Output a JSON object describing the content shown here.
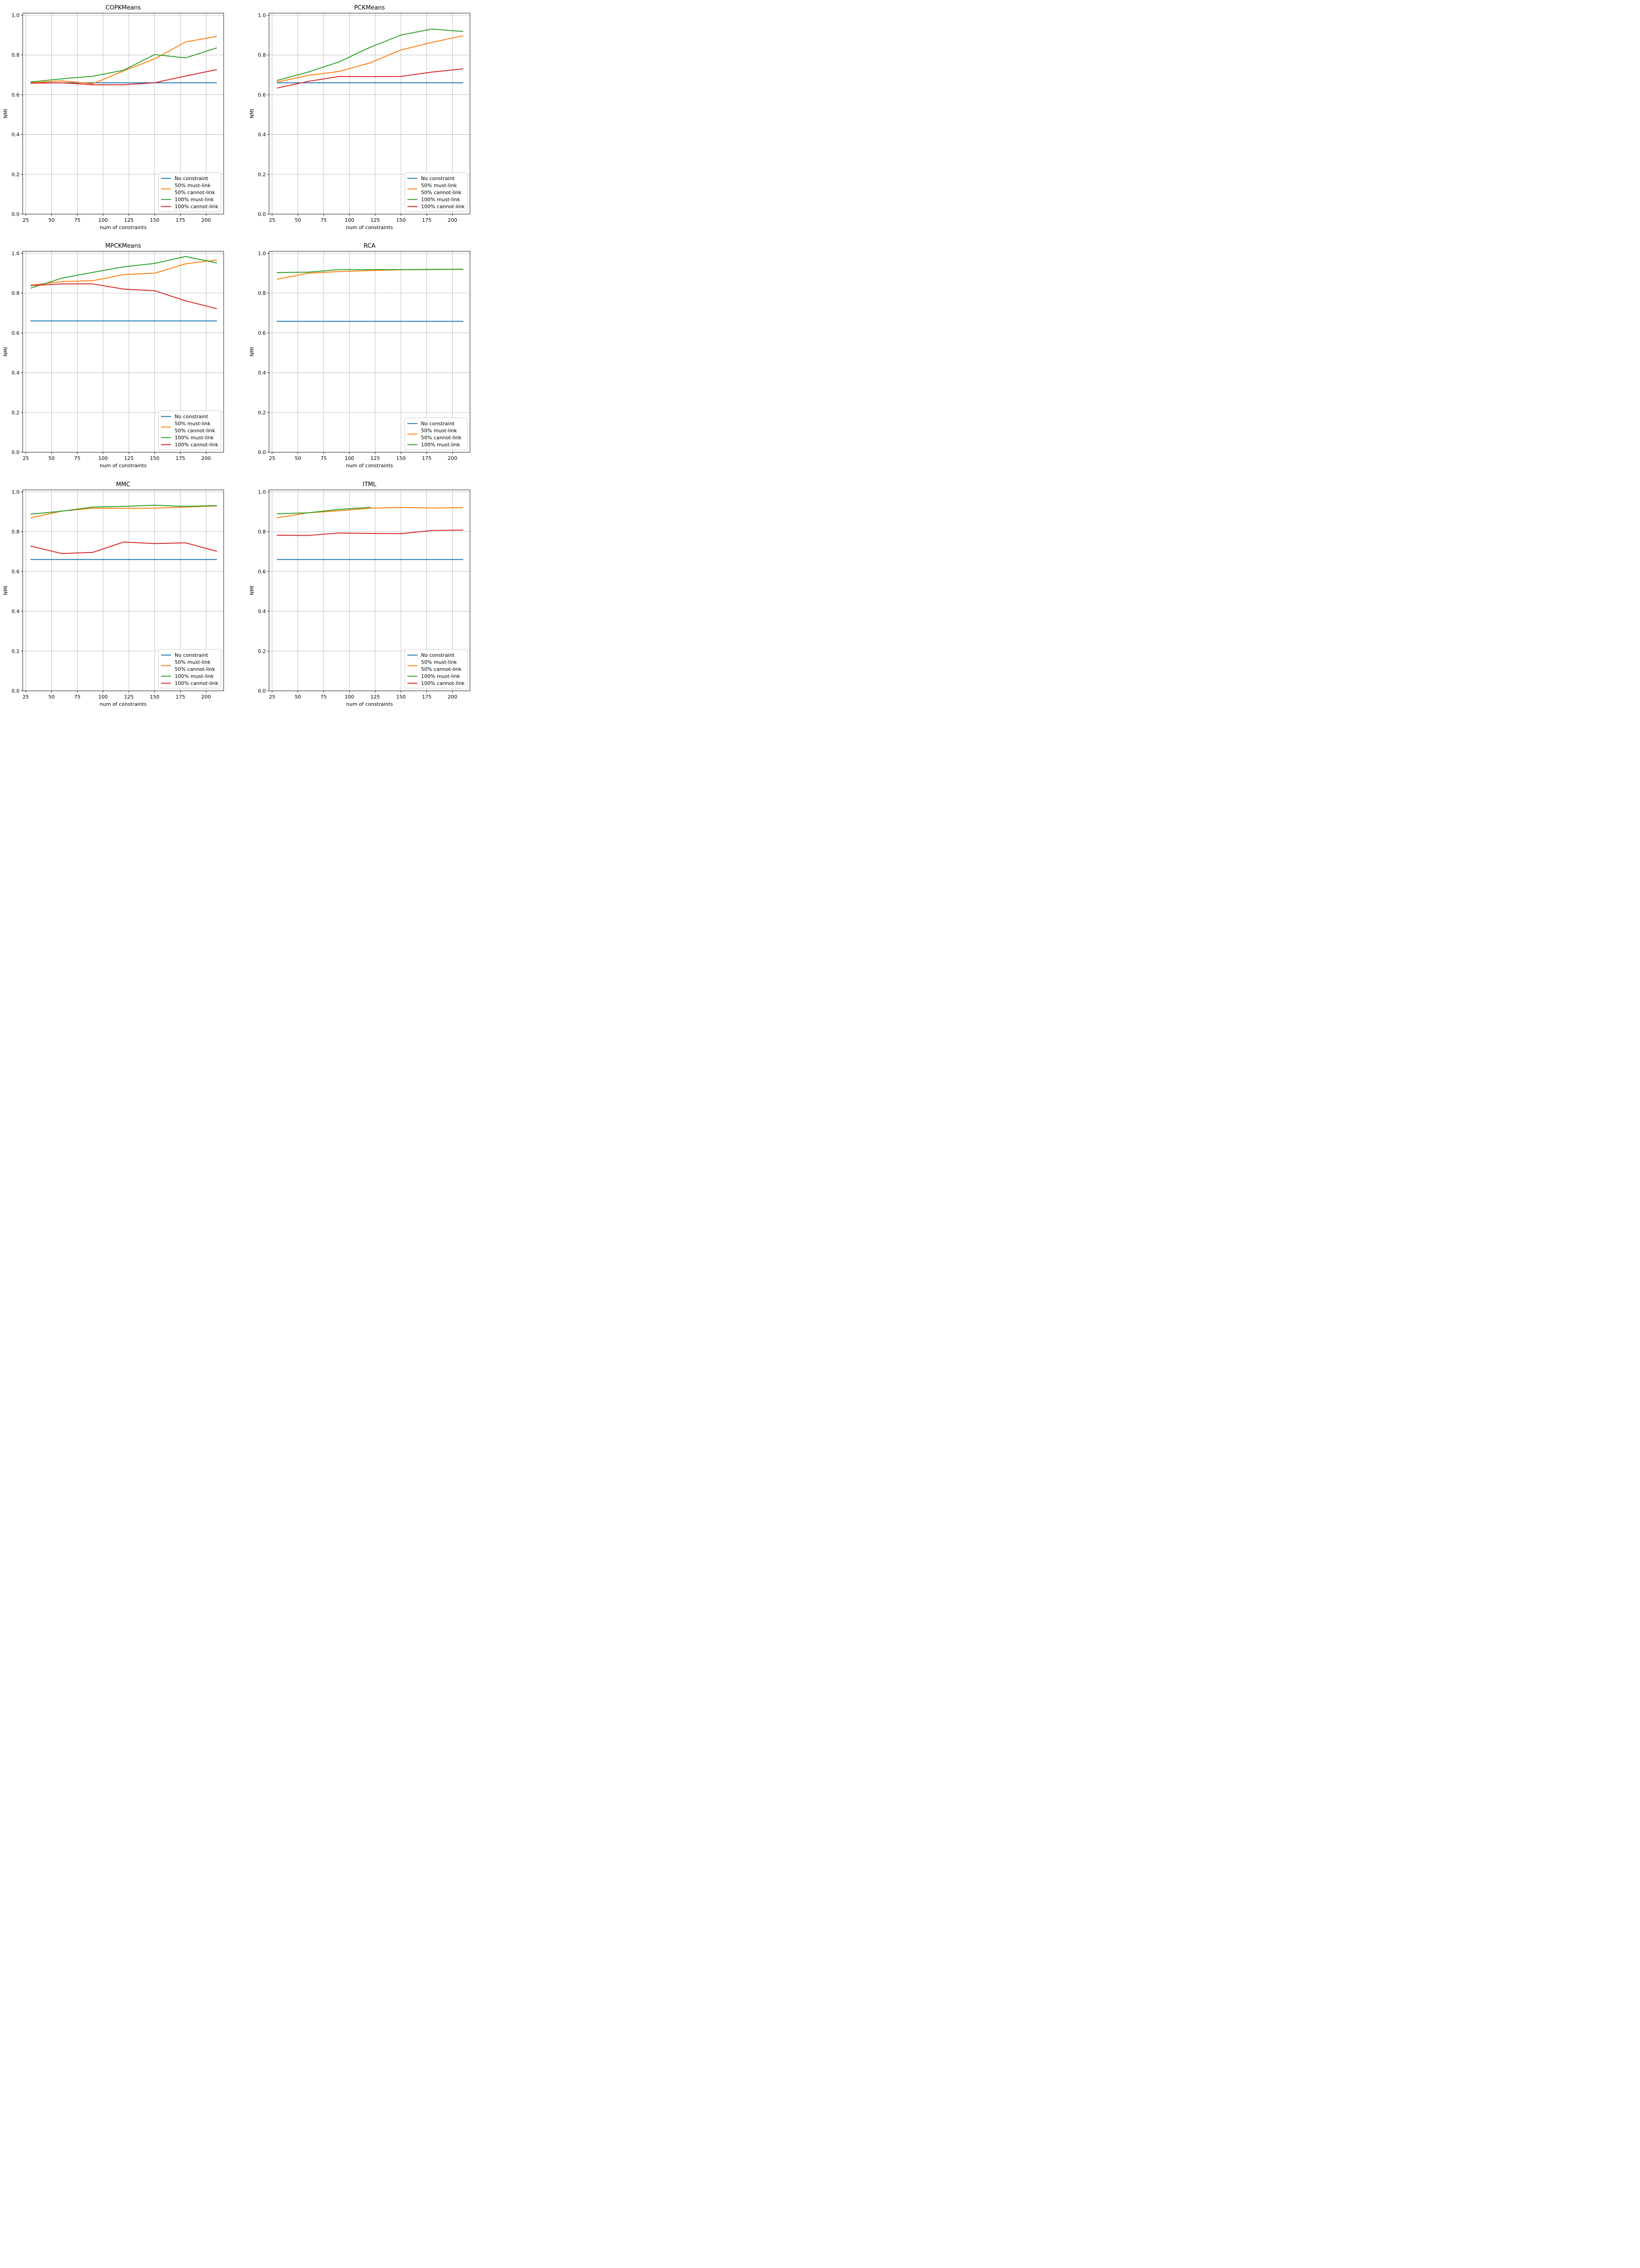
{
  "chart_data": [
    {
      "type": "line",
      "title": "COPKMeans",
      "xlabel": "num of constraints",
      "ylabel": "NMI",
      "x": [
        30,
        60,
        90,
        120,
        150,
        180,
        210
      ],
      "xlim": [
        22,
        217
      ],
      "ylim": [
        0,
        1.01
      ],
      "xticks": [
        25,
        50,
        75,
        100,
        125,
        150,
        175,
        200
      ],
      "yticks": [
        0.0,
        0.2,
        0.4,
        0.6,
        0.8,
        1.0
      ],
      "grid": true,
      "legend": "lower-right",
      "series": [
        {
          "name": "No constraint",
          "color": "#1f77b4",
          "values": [
            0.66,
            0.66,
            0.66,
            0.66,
            0.66,
            0.66,
            0.66
          ]
        },
        {
          "name": "50% must-link\n50% cannot-link",
          "color": "#ff7f0e",
          "values": [
            0.66,
            0.67,
            0.655,
            0.72,
            0.78,
            0.865,
            0.893
          ]
        },
        {
          "name": "100% must-link",
          "color": "#2ca02c",
          "values": [
            0.664,
            0.68,
            0.693,
            0.723,
            0.802,
            0.785,
            0.835
          ]
        },
        {
          "name": "100% cannot-link",
          "color": "#d62728",
          "values": [
            0.658,
            0.66,
            0.65,
            0.65,
            0.66,
            0.694,
            0.726
          ]
        }
      ]
    },
    {
      "type": "line",
      "title": "PCKMeans",
      "xlabel": "num of constraints",
      "ylabel": "NMI",
      "x": [
        30,
        60,
        90,
        120,
        150,
        180,
        210
      ],
      "xlim": [
        22,
        217
      ],
      "ylim": [
        0,
        1.01
      ],
      "xticks": [
        25,
        50,
        75,
        100,
        125,
        150,
        175,
        200
      ],
      "yticks": [
        0.0,
        0.2,
        0.4,
        0.6,
        0.8,
        1.0
      ],
      "grid": true,
      "legend": "lower-right",
      "series": [
        {
          "name": "No constraint",
          "color": "#1f77b4",
          "values": [
            0.66,
            0.66,
            0.66,
            0.66,
            0.66,
            0.66,
            0.66
          ]
        },
        {
          "name": "50% must-link\n50% cannot-link",
          "color": "#ff7f0e",
          "values": [
            0.664,
            0.697,
            0.717,
            0.76,
            0.825,
            0.863,
            0.896
          ]
        },
        {
          "name": "100% must-link",
          "color": "#2ca02c",
          "values": [
            0.672,
            0.714,
            0.765,
            0.838,
            0.9,
            0.93,
            0.918
          ]
        },
        {
          "name": "100% cannot-link",
          "color": "#d62728",
          "values": [
            0.634,
            0.667,
            0.692,
            0.691,
            0.692,
            0.714,
            0.73
          ]
        }
      ]
    },
    {
      "type": "line",
      "title": "MPCKMeans",
      "xlabel": "num of constraints",
      "ylabel": "NMI",
      "x": [
        30,
        60,
        90,
        120,
        150,
        180,
        210
      ],
      "xlim": [
        22,
        217
      ],
      "ylim": [
        0,
        1.01
      ],
      "xticks": [
        25,
        50,
        75,
        100,
        125,
        150,
        175,
        200
      ],
      "yticks": [
        0.0,
        0.2,
        0.4,
        0.6,
        0.8,
        1.0
      ],
      "grid": true,
      "legend": "lower-right",
      "series": [
        {
          "name": "No constraint",
          "color": "#1f77b4",
          "values": [
            0.66,
            0.66,
            0.66,
            0.66,
            0.66,
            0.66,
            0.66
          ]
        },
        {
          "name": "50% must-link\n50% cannot-link",
          "color": "#ff7f0e",
          "values": [
            0.84,
            0.858,
            0.862,
            0.893,
            0.9,
            0.947,
            0.966
          ]
        },
        {
          "name": "100% must-link",
          "color": "#2ca02c",
          "values": [
            0.825,
            0.875,
            0.904,
            0.932,
            0.949,
            0.984,
            0.952
          ]
        },
        {
          "name": "100% cannot-link",
          "color": "#d62728",
          "values": [
            0.838,
            0.846,
            0.846,
            0.82,
            0.812,
            0.761,
            0.722
          ]
        }
      ]
    },
    {
      "type": "line",
      "title": "RCA",
      "xlabel": "num of constraints",
      "ylabel": "NMI",
      "x": [
        30,
        60,
        90,
        120,
        150,
        180,
        210
      ],
      "xlim": [
        22,
        217
      ],
      "ylim": [
        0,
        1.01
      ],
      "xticks": [
        25,
        50,
        75,
        100,
        125,
        150,
        175,
        200
      ],
      "yticks": [
        0.0,
        0.2,
        0.4,
        0.6,
        0.8,
        1.0
      ],
      "grid": true,
      "legend": "lower-right",
      "series": [
        {
          "name": "No constraint",
          "color": "#1f77b4",
          "values": [
            0.658,
            0.658,
            0.658,
            0.658,
            0.658,
            0.658,
            0.658
          ]
        },
        {
          "name": "50% must-link\n50% cannot-link",
          "color": "#ff7f0e",
          "values": [
            0.87,
            0.9,
            0.908,
            0.913,
            0.917,
            0.918,
            0.919
          ]
        },
        {
          "name": "100% must-link",
          "color": "#2ca02c",
          "values": [
            0.903,
            0.905,
            0.918,
            0.918,
            0.918,
            0.919,
            0.92
          ]
        }
      ]
    },
    {
      "type": "line",
      "title": "MMC",
      "xlabel": "num of constraints",
      "ylabel": "NMI",
      "x": [
        30,
        60,
        90,
        120,
        150,
        180,
        210
      ],
      "xlim": [
        22,
        217
      ],
      "ylim": [
        0,
        1.01
      ],
      "xticks": [
        25,
        50,
        75,
        100,
        125,
        150,
        175,
        200
      ],
      "yticks": [
        0.0,
        0.2,
        0.4,
        0.6,
        0.8,
        1.0
      ],
      "grid": true,
      "legend": "lower-right",
      "series": [
        {
          "name": "No constraint",
          "color": "#1f77b4",
          "values": [
            0.66,
            0.66,
            0.66,
            0.66,
            0.66,
            0.66,
            0.66
          ]
        },
        {
          "name": "50% must-link\n50% cannot-link",
          "color": "#ff7f0e",
          "values": [
            0.87,
            0.903,
            0.918,
            0.917,
            0.918,
            0.924,
            0.929
          ]
        },
        {
          "name": "100% must-link",
          "color": "#2ca02c",
          "values": [
            0.888,
            0.903,
            0.924,
            0.927,
            0.933,
            0.927,
            0.931
          ]
        },
        {
          "name": "100% cannot-link",
          "color": "#d62728",
          "values": [
            0.727,
            0.69,
            0.696,
            0.748,
            0.74,
            0.744,
            0.702
          ]
        }
      ]
    },
    {
      "type": "line",
      "title": "ITML",
      "xlabel": "num of constraints",
      "ylabel": "NMI",
      "x": [
        30,
        60,
        90,
        120,
        150,
        180,
        210
      ],
      "xlim": [
        22,
        217
      ],
      "ylim": [
        0,
        1.01
      ],
      "xticks": [
        25,
        50,
        75,
        100,
        125,
        150,
        175,
        200
      ],
      "yticks": [
        0.0,
        0.2,
        0.4,
        0.6,
        0.8,
        1.0
      ],
      "grid": true,
      "legend": "lower-right",
      "series": [
        {
          "name": "No constraint",
          "color": "#1f77b4",
          "x": [
            30,
            60,
            90,
            120,
            150,
            180,
            210
          ],
          "values": [
            0.66,
            0.66,
            0.66,
            0.66,
            0.66,
            0.66,
            0.66
          ]
        },
        {
          "name": "50% must-link\n50% cannot-link",
          "color": "#ff7f0e",
          "x": [
            30,
            60,
            90,
            120,
            150,
            180,
            210
          ],
          "values": [
            0.87,
            0.895,
            0.905,
            0.918,
            0.922,
            0.919,
            0.921
          ]
        },
        {
          "name": "100% must-link",
          "color": "#2ca02c",
          "x": [
            30,
            60,
            90,
            120
          ],
          "values": [
            0.89,
            0.895,
            0.912,
            0.922
          ]
        },
        {
          "name": "100% cannot-link",
          "color": "#d62728",
          "x": [
            30,
            60,
            90,
            120,
            150,
            180,
            210
          ],
          "values": [
            0.782,
            0.781,
            0.793,
            0.791,
            0.79,
            0.806,
            0.808
          ]
        }
      ]
    }
  ]
}
